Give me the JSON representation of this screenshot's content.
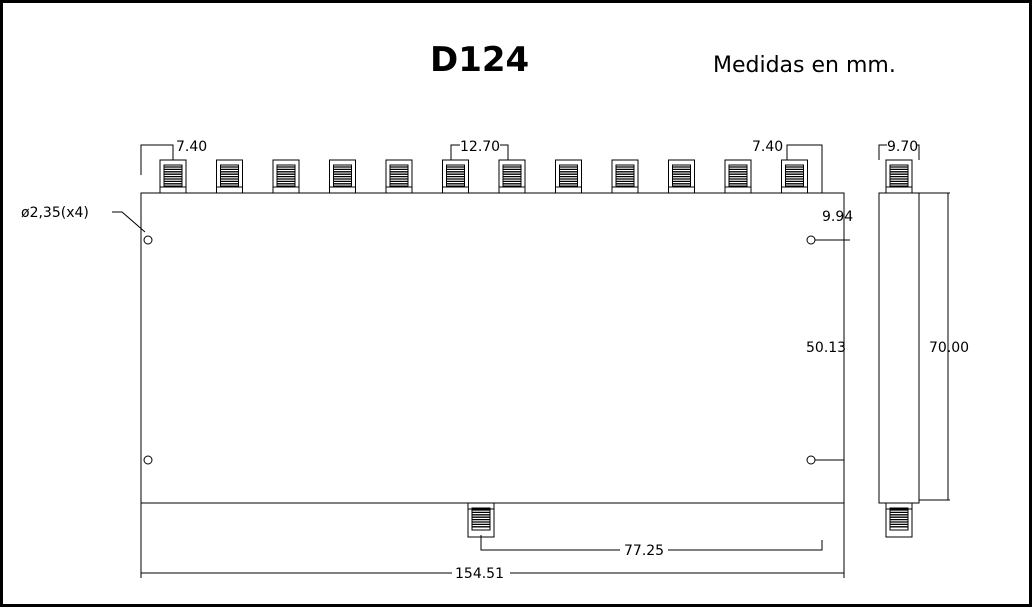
{
  "title": "D124",
  "units_note": "Medidas en mm.",
  "dimensions": {
    "output_pitch_left": "7.40",
    "output_pitch_center": "12.70",
    "output_pitch_right": "7.40",
    "side_width": "9.70",
    "hole_spec": "ø2,35(x4)",
    "hole_offset": "9.94",
    "hole_spacing": "50.13",
    "body_height": "70.00",
    "input_offset": "77.25",
    "overall_length": "154.51"
  },
  "connectors": {
    "output_count": 12
  }
}
